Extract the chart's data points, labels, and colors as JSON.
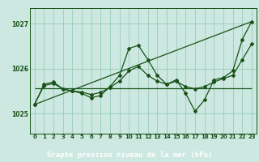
{
  "title": "Graphe pression niveau de la mer (hPa)",
  "bg_color": "#cce8e0",
  "plot_bg_color": "#cce8e0",
  "bottom_bar_color": "#2d6e2d",
  "grid_color": "#99ccbb",
  "line_color": "#1a5218",
  "text_color": "#1a5218",
  "label_color": "#e0ffe0",
  "xlim": [
    -0.5,
    23.5
  ],
  "ylim": [
    1024.55,
    1027.35
  ],
  "yticks": [
    1025,
    1026,
    1027
  ],
  "xticks": [
    0,
    1,
    2,
    3,
    4,
    5,
    6,
    7,
    8,
    9,
    10,
    11,
    12,
    13,
    14,
    15,
    16,
    17,
    18,
    19,
    20,
    21,
    22,
    23
  ],
  "line_main": {
    "x": [
      0,
      1,
      2,
      3,
      4,
      5,
      6,
      7,
      8,
      9,
      10,
      11,
      12,
      13,
      14,
      15,
      16,
      17,
      18,
      19,
      20,
      21,
      22,
      23
    ],
    "y": [
      1025.2,
      1025.65,
      1025.7,
      1025.55,
      1025.5,
      1025.45,
      1025.35,
      1025.4,
      1025.6,
      1025.85,
      1026.45,
      1026.52,
      1026.2,
      1025.85,
      1025.65,
      1025.75,
      1025.45,
      1025.05,
      1025.3,
      1025.75,
      1025.8,
      1025.95,
      1026.65,
      1027.05
    ]
  },
  "line_trend": {
    "x": [
      0,
      23
    ],
    "y": [
      1025.2,
      1027.05
    ]
  },
  "line_flat": {
    "x": [
      0,
      23
    ],
    "y": [
      1025.57,
      1025.57
    ]
  },
  "line_smooth": {
    "x": [
      0,
      1,
      2,
      3,
      4,
      5,
      6,
      7,
      8,
      9,
      10,
      11,
      12,
      13,
      14,
      15,
      16,
      17,
      18,
      19,
      20,
      21,
      22,
      23
    ],
    "y": [
      1025.2,
      1025.62,
      1025.67,
      1025.55,
      1025.5,
      1025.48,
      1025.42,
      1025.47,
      1025.58,
      1025.72,
      1025.95,
      1026.05,
      1025.85,
      1025.72,
      1025.65,
      1025.72,
      1025.6,
      1025.55,
      1025.6,
      1025.7,
      1025.78,
      1025.85,
      1026.2,
      1026.55
    ]
  }
}
